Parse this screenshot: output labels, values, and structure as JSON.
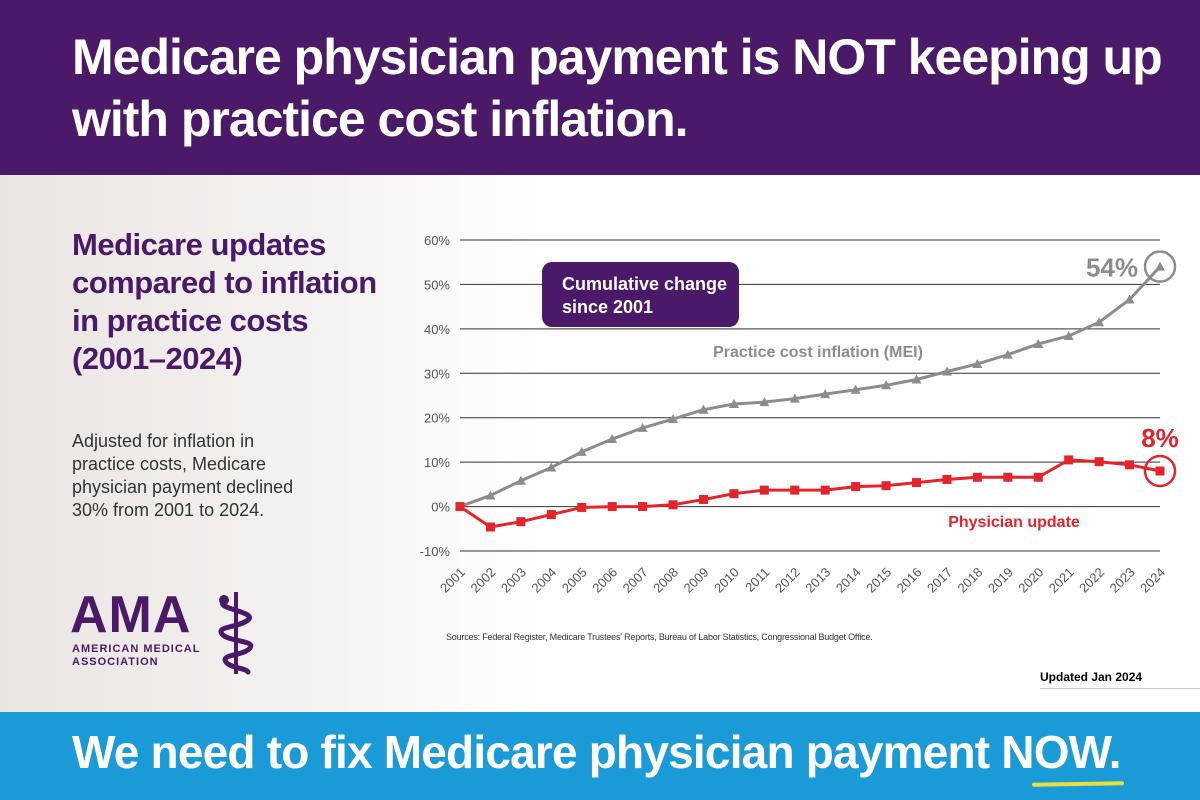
{
  "header": {
    "headline": "Medicare physician payment is NOT keeping up with practice cost inflation."
  },
  "sidebar": {
    "title": "Medicare updates compared to inflation in practice costs (2001–2024)",
    "description": "Adjusted for inflation in practice costs, Medicare physician payment declined 30% from 2001 to 2024."
  },
  "logo": {
    "name": "AMA",
    "subtitle_line1": "AMERICAN MEDICAL",
    "subtitle_line2": "ASSOCIATION"
  },
  "footnote": {
    "sources": "Sources: Federal Register, Medicare Trustees' Reports, Bureau of Labor Statistics, Congressional Budget Office.",
    "updated": "Updated Jan 2024"
  },
  "footer": {
    "cta_main": "We need to fix Medicare physician payment ",
    "cta_now": "NOW",
    "cta_end": "."
  },
  "colors": {
    "purple": "#4a1a68",
    "blue": "#1a9ad6",
    "mei_gray": "#8c8c8c",
    "physician_red": "#e3242b"
  },
  "chart_data": {
    "type": "line",
    "title": "",
    "callout": "Cumulative change since 2001",
    "xlabel": "",
    "ylabel": "",
    "ylim": [
      -10,
      60
    ],
    "yticks": [
      -10,
      0,
      10,
      20,
      30,
      40,
      50,
      60
    ],
    "ytick_labels": [
      "-10%",
      "0%",
      "10%",
      "20%",
      "30%",
      "40%",
      "50%",
      "60%"
    ],
    "x": [
      "2001",
      "2002",
      "2003",
      "2004",
      "2005",
      "2006",
      "2007",
      "2008",
      "2009",
      "2010",
      "2011",
      "2012",
      "2013",
      "2014",
      "2015",
      "2016",
      "2017",
      "2018",
      "2019",
      "2020",
      "2021",
      "2022",
      "2023",
      "2024"
    ],
    "grid": true,
    "series": [
      {
        "name": "Practice cost inflation (MEI)",
        "color": "#8c8c8c",
        "marker": "triangle",
        "end_label": "54%",
        "values": [
          0,
          2.5,
          5.8,
          8.8,
          12.3,
          15.2,
          17.7,
          19.7,
          21.8,
          23.1,
          23.5,
          24.3,
          25.3,
          26.3,
          27.3,
          28.6,
          30.4,
          32.1,
          34.2,
          36.6,
          38.4,
          41.5,
          46.6,
          54
        ]
      },
      {
        "name": "Physician update",
        "color": "#e3242b",
        "marker": "square",
        "end_label": "8%",
        "values": [
          0,
          -4.6,
          -3.4,
          -1.8,
          -0.2,
          0,
          0,
          0.4,
          1.6,
          2.9,
          3.7,
          3.7,
          3.7,
          4.5,
          4.7,
          5.4,
          6.1,
          6.6,
          6.6,
          6.6,
          10.5,
          10.1,
          9.4,
          8
        ]
      }
    ]
  }
}
